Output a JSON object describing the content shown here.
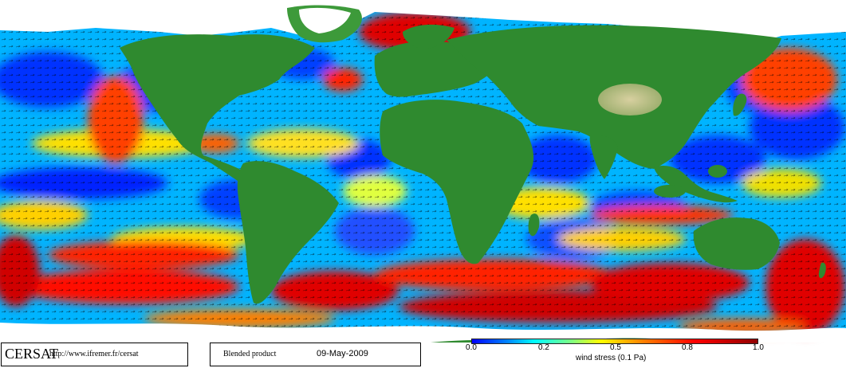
{
  "footer": {
    "logo": "CERSAT",
    "url": "http://www.ifremer.fr/cersat",
    "product": "Blended product",
    "date": "09-May-2009"
  },
  "colorbar": {
    "ticks": [
      "0.0",
      "0.2",
      "0.5",
      "0.8",
      "1.0"
    ],
    "tick_values": [
      0.0,
      0.2,
      0.5,
      0.8,
      1.0
    ],
    "title": "wind stress (0.1 Pa)",
    "colors": [
      "#0000ff",
      "#00a0ff",
      "#00ffff",
      "#ffff00",
      "#ff8000",
      "#ff0000",
      "#a00000"
    ]
  },
  "colors": {
    "land": "#2f8a2f",
    "land_dark": "#1e6b24",
    "land_light": "#a8b878",
    "ice": "#ffffff",
    "ocean_low": "#0000ff",
    "ocean_mid": "#00c8ff",
    "ocean_yellow": "#ffff00",
    "ocean_high": "#ff0000"
  }
}
